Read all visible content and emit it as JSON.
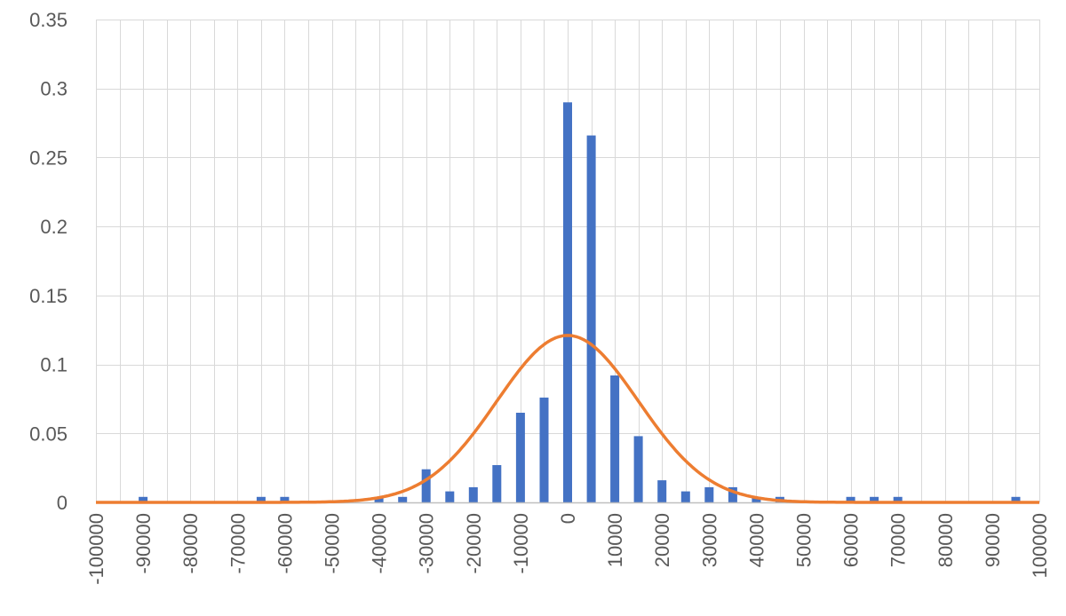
{
  "chart_data": {
    "type": "bar",
    "title": "",
    "xlabel": "",
    "ylabel": "",
    "xlim": [
      -100000,
      100000
    ],
    "ylim": [
      0,
      0.35
    ],
    "grid": true,
    "legend": "none",
    "x_tick_labels": [
      "-100000",
      "-90000",
      "-80000",
      "-70000",
      "-60000",
      "-50000",
      "-40000",
      "-30000",
      "-20000",
      "-10000",
      "0",
      "10000",
      "20000",
      "30000",
      "40000",
      "50000",
      "60000",
      "70000",
      "80000",
      "90000",
      "100000"
    ],
    "y_tick_labels": [
      "0",
      "0.05",
      "0.1",
      "0.15",
      "0.2",
      "0.25",
      "0.3",
      "0.35"
    ],
    "colors": {
      "bars": "#4472C4",
      "curve": "#ED7D31",
      "grid": "#D9D9D9",
      "axis": "#BFBFBF",
      "text": "#595959"
    },
    "series": [
      {
        "type": "bar",
        "x": [
          -90000,
          -65000,
          -60000,
          -40000,
          -35000,
          -30000,
          -25000,
          -20000,
          -15000,
          -10000,
          -5000,
          0,
          5000,
          10000,
          15000,
          20000,
          25000,
          30000,
          35000,
          40000,
          45000,
          60000,
          65000,
          70000,
          95000
        ],
        "values": [
          0.004,
          0.004,
          0.004,
          0.004,
          0.004,
          0.024,
          0.008,
          0.011,
          0.027,
          0.065,
          0.076,
          0.29,
          0.266,
          0.092,
          0.048,
          0.016,
          0.008,
          0.011,
          0.011,
          0.004,
          0.004,
          0.004,
          0.004,
          0.004,
          0.004
        ]
      },
      {
        "type": "line",
        "distribution": "normal",
        "mean": 0,
        "stdev": 15000,
        "peak": 0.121
      }
    ]
  }
}
